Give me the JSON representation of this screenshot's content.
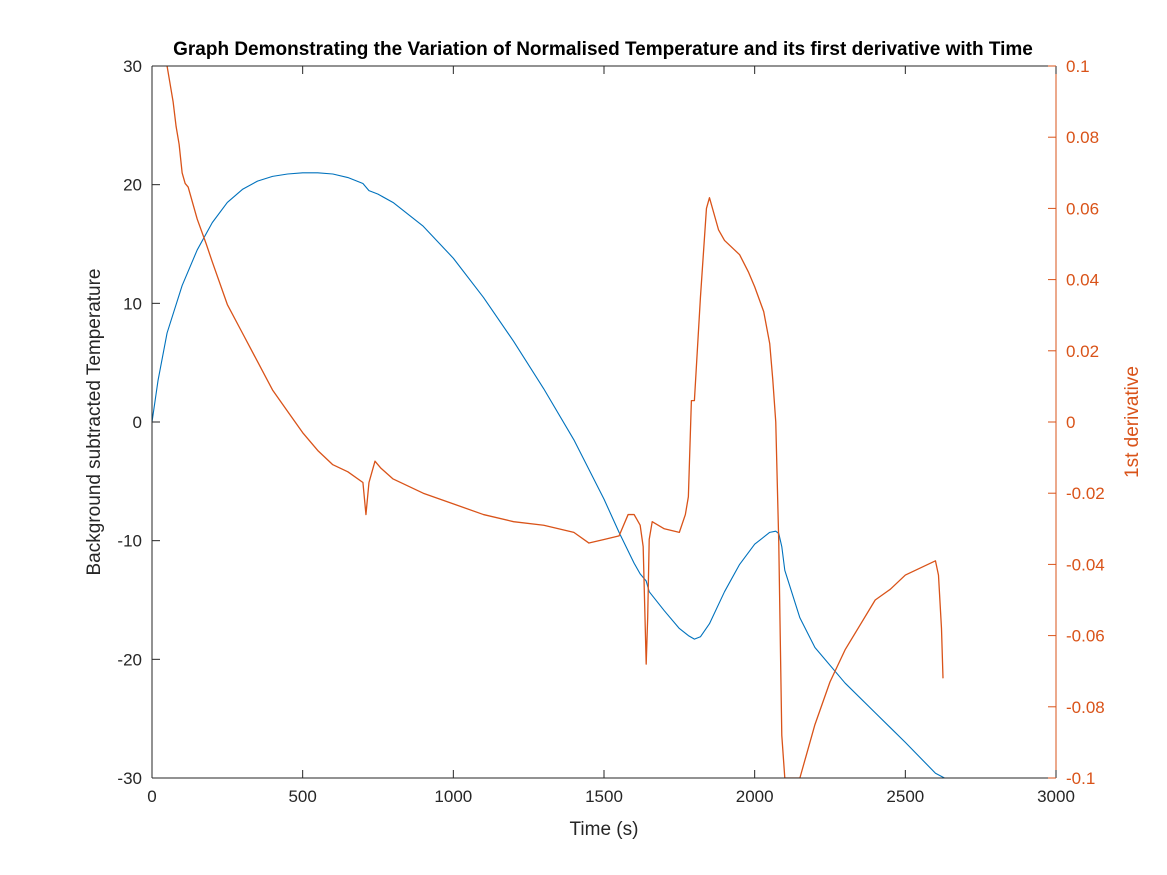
{
  "chart_data": {
    "type": "line",
    "title": "Graph Demonstrating the Variation of Normalised Temperature and its first derivative with Time",
    "xlabel": "Time (s)",
    "ylabel_left": "Background subtracted Temperature",
    "ylabel_right": "1st derivative",
    "xlim": [
      0,
      3000
    ],
    "ylim_left": [
      -30,
      30
    ],
    "ylim_right": [
      -0.1,
      0.1
    ],
    "x_ticks": [
      "0",
      "500",
      "1000",
      "1500",
      "2000",
      "2500",
      "3000"
    ],
    "y_left_ticks": [
      "-30",
      "-20",
      "-10",
      "0",
      "10",
      "20",
      "30"
    ],
    "y_right_ticks": [
      "-0.1",
      "-0.08",
      "-0.06",
      "-0.04",
      "-0.02",
      "0",
      "0.02",
      "0.04",
      "0.06",
      "0.08",
      "0.1"
    ],
    "grid": false,
    "colors": {
      "temperature": "#0072BD",
      "derivative": "#D95319",
      "axis": "#262626"
    },
    "series": [
      {
        "axis": "left",
        "x": [
          0,
          20,
          50,
          100,
          150,
          200,
          250,
          300,
          350,
          400,
          450,
          500,
          550,
          600,
          650,
          700,
          720,
          750,
          800,
          900,
          1000,
          1100,
          1200,
          1300,
          1400,
          1500,
          1550,
          1600,
          1620,
          1640,
          1650,
          1700,
          1750,
          1780,
          1800,
          1820,
          1850,
          1900,
          1950,
          2000,
          2050,
          2070,
          2080,
          2090,
          2100,
          2150,
          2200,
          2300,
          2400,
          2500,
          2600,
          2630
        ],
        "y": [
          0,
          3.5,
          7.5,
          11.5,
          14.5,
          16.8,
          18.5,
          19.6,
          20.3,
          20.7,
          20.9,
          21.0,
          21.0,
          20.9,
          20.6,
          20.1,
          19.5,
          19.2,
          18.5,
          16.5,
          13.8,
          10.5,
          6.8,
          2.8,
          -1.5,
          -6.5,
          -9.3,
          -11.9,
          -12.8,
          -13.4,
          -14.3,
          -15.9,
          -17.4,
          -18.0,
          -18.3,
          -18.1,
          -17.0,
          -14.3,
          -12.0,
          -10.3,
          -9.3,
          -9.2,
          -9.4,
          -10.5,
          -12.5,
          -16.5,
          -19.0,
          -22.0,
          -24.5,
          -27.0,
          -29.6,
          -30.0
        ]
      },
      {
        "axis": "right",
        "x": [
          50,
          60,
          70,
          80,
          90,
          100,
          110,
          120,
          150,
          180,
          200,
          250,
          300,
          350,
          400,
          450,
          500,
          550,
          600,
          650,
          700,
          710,
          720,
          740,
          760,
          800,
          900,
          1000,
          1100,
          1200,
          1300,
          1400,
          1450,
          1500,
          1550,
          1580,
          1600,
          1620,
          1630,
          1640,
          1645,
          1650,
          1660,
          1700,
          1750,
          1770,
          1780,
          1790,
          1800,
          1820,
          1840,
          1850,
          1880,
          1900,
          1950,
          1980,
          2000,
          2030,
          2050,
          2060,
          2070,
          2080,
          2090,
          2100,
          2110,
          2120,
          2130,
          2150,
          2170,
          2200,
          2250,
          2300,
          2350,
          2400,
          2450,
          2500,
          2550,
          2600,
          2610,
          2620,
          2625
        ],
        "y": [
          0.1,
          0.095,
          0.09,
          0.083,
          0.078,
          0.07,
          0.067,
          0.066,
          0.057,
          0.05,
          0.045,
          0.033,
          0.025,
          0.017,
          0.009,
          0.003,
          -0.003,
          -0.008,
          -0.012,
          -0.014,
          -0.017,
          -0.026,
          -0.017,
          -0.011,
          -0.013,
          -0.016,
          -0.02,
          -0.023,
          -0.026,
          -0.028,
          -0.029,
          -0.031,
          -0.034,
          -0.033,
          -0.032,
          -0.026,
          -0.026,
          -0.029,
          -0.035,
          -0.068,
          -0.055,
          -0.033,
          -0.028,
          -0.03,
          -0.031,
          -0.026,
          -0.021,
          0.006,
          0.006,
          0.035,
          0.06,
          0.063,
          0.054,
          0.051,
          0.047,
          0.042,
          0.038,
          0.031,
          0.022,
          0.012,
          0.0,
          -0.034,
          -0.088,
          -0.1,
          -0.1,
          -0.1,
          -0.1,
          -0.1,
          -0.094,
          -0.085,
          -0.073,
          -0.064,
          -0.057,
          -0.05,
          -0.047,
          -0.043,
          -0.041,
          -0.039,
          -0.043,
          -0.058,
          -0.072
        ]
      }
    ]
  }
}
